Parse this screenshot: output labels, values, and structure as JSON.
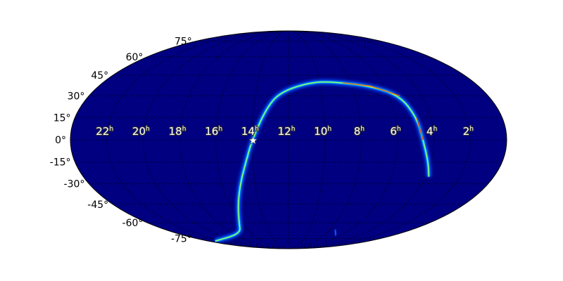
{
  "chart_data": {
    "type": "heatmap",
    "projection": "mollweide",
    "title": "",
    "center_ra_h": 12,
    "background_color": "#000080",
    "colormap": "jet",
    "grid": true,
    "ra_tick_labels": [
      {
        "ra_h": 22,
        "label": "22",
        "unit": "h"
      },
      {
        "ra_h": 20,
        "label": "20",
        "unit": "h"
      },
      {
        "ra_h": 18,
        "label": "18",
        "unit": "h"
      },
      {
        "ra_h": 16,
        "label": "16",
        "unit": "h"
      },
      {
        "ra_h": 14,
        "label": "14",
        "unit": "h"
      },
      {
        "ra_h": 12,
        "label": "12",
        "unit": "h"
      },
      {
        "ra_h": 10,
        "label": "10",
        "unit": "h"
      },
      {
        "ra_h": 8,
        "label": "8",
        "unit": "h"
      },
      {
        "ra_h": 6,
        "label": "6",
        "unit": "h"
      },
      {
        "ra_h": 4,
        "label": "4",
        "unit": "h"
      },
      {
        "ra_h": 2,
        "label": "2",
        "unit": "h"
      }
    ],
    "dec_tick_labels": [
      {
        "dec": 75,
        "label": "75°"
      },
      {
        "dec": 60,
        "label": "60°"
      },
      {
        "dec": 45,
        "label": "45°"
      },
      {
        "dec": 30,
        "label": "30°"
      },
      {
        "dec": 15,
        "label": "15°"
      },
      {
        "dec": 0,
        "label": "0°"
      },
      {
        "dec": -15,
        "label": "-15°"
      },
      {
        "dec": -30,
        "label": "-30°"
      },
      {
        "dec": -45,
        "label": "-45°"
      },
      {
        "dec": -60,
        "label": "-60°"
      },
      {
        "dec": -75,
        "label": "-75°"
      }
    ],
    "probability_track": [
      [
        3.8,
        -25
      ],
      [
        4.15,
        -15
      ],
      [
        4.6,
        0
      ],
      [
        4.8,
        15
      ],
      [
        5.3,
        30
      ],
      [
        6.8,
        37
      ],
      [
        9.0,
        40
      ],
      [
        10.5,
        40
      ],
      [
        12.45,
        33
      ],
      [
        13.25,
        22
      ],
      [
        14.0,
        0
      ],
      [
        14.4,
        -15
      ],
      [
        14.9,
        -30
      ],
      [
        15.45,
        -45
      ],
      [
        16.2,
        -60
      ],
      [
        17.2,
        -70
      ],
      [
        23.0,
        -78
      ]
    ],
    "marker": {
      "symbol": "star",
      "ra_h": 13.95,
      "dec": -0.5,
      "color": "#ffffff"
    }
  }
}
